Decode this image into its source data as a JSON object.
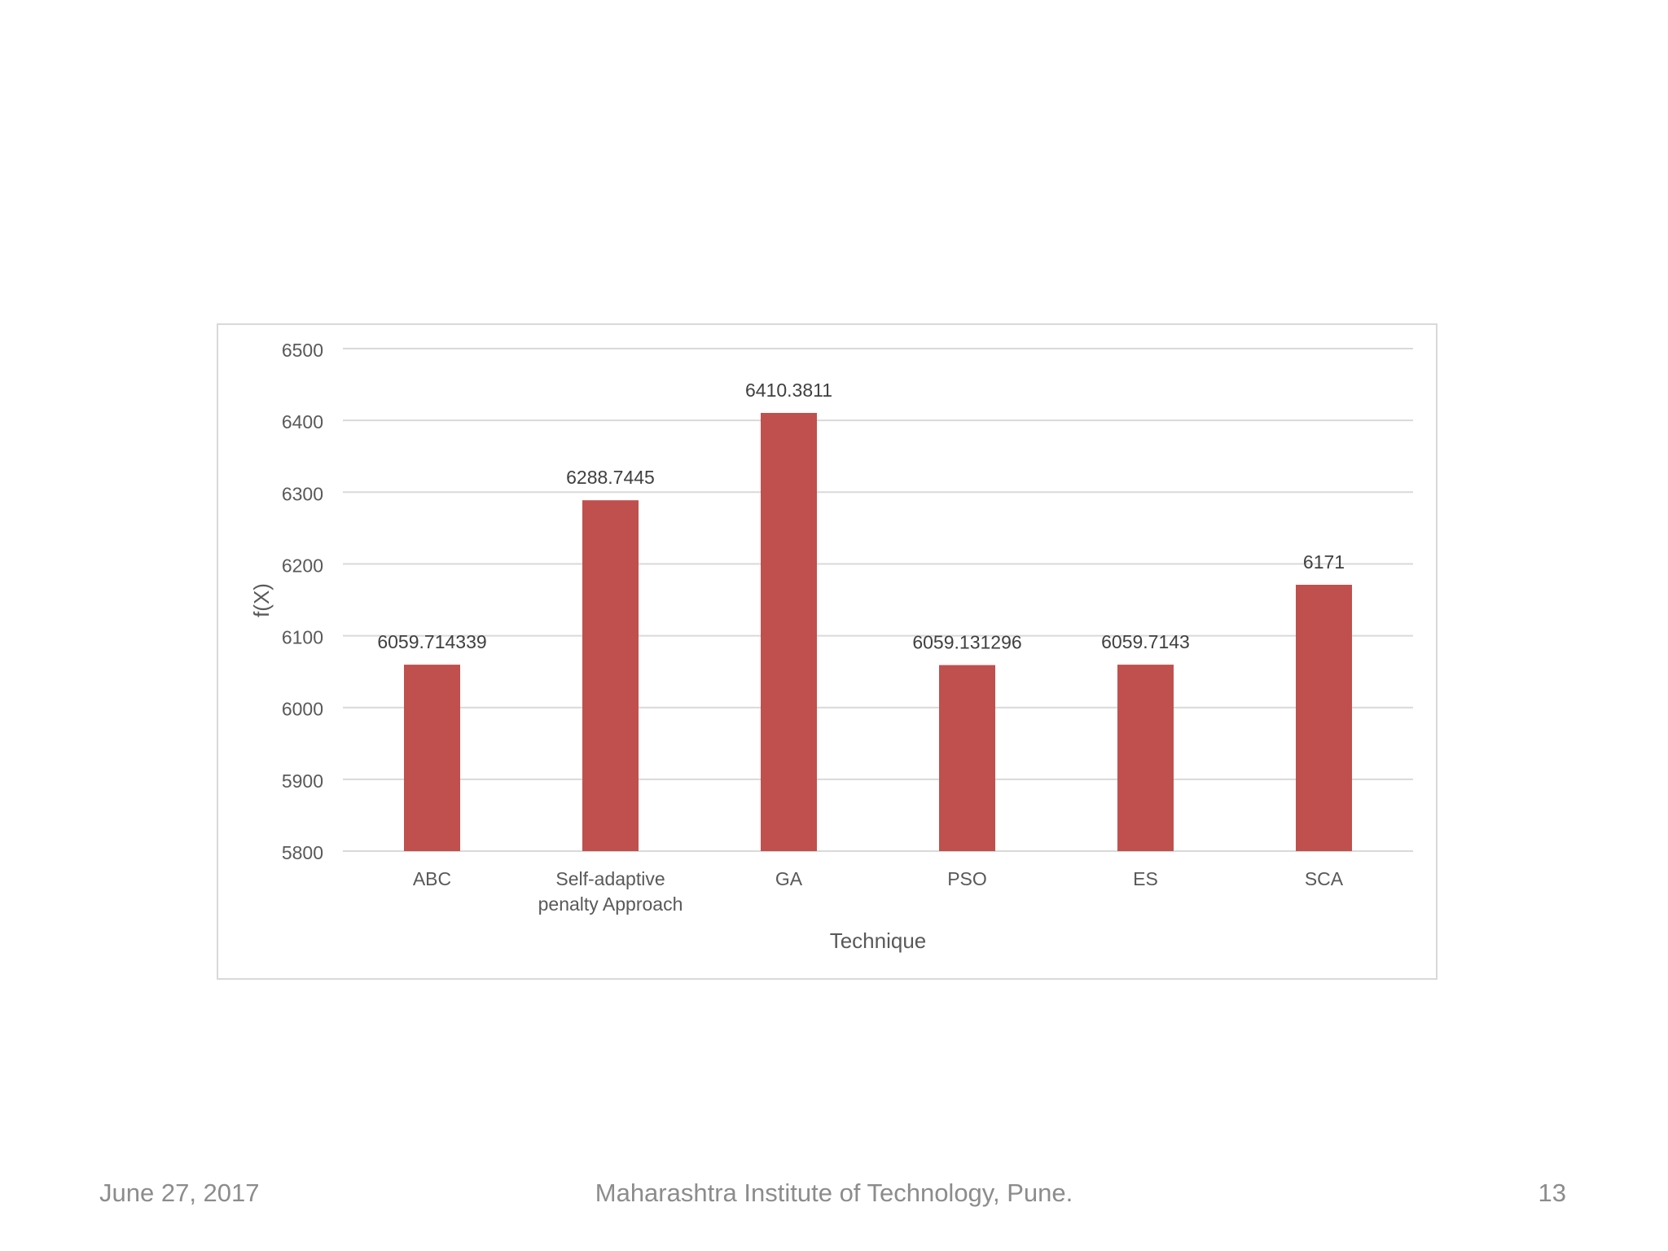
{
  "colors": {
    "bar": "#c0504d",
    "grid": "#d9d9d9",
    "axis_text": "#595959",
    "label_text": "#404040",
    "footer_text": "#8c8c8c"
  },
  "chart_data": {
    "type": "bar",
    "categories": [
      "ABC",
      "Self-adaptive penalty Approach",
      "GA",
      "PSO",
      "ES",
      "SCA"
    ],
    "category_lines": [
      [
        "ABC"
      ],
      [
        "Self-adaptive",
        "penalty Approach"
      ],
      [
        "GA"
      ],
      [
        "PSO"
      ],
      [
        "ES"
      ],
      [
        "SCA"
      ]
    ],
    "values": [
      6059.714339,
      6288.7445,
      6410.3811,
      6059.131296,
      6059.7143,
      6171
    ],
    "data_labels": [
      "6059.714339",
      "6288.7445",
      "6410.3811",
      "6059.131296",
      "6059.7143",
      "6171"
    ],
    "title": "",
    "xlabel": "Technique",
    "ylabel": "f(X)",
    "ylim": [
      5800,
      6500
    ],
    "yticks": [
      5800,
      5900,
      6000,
      6100,
      6200,
      6300,
      6400,
      6500
    ],
    "grid": true,
    "legend": "none"
  },
  "footer": {
    "date": "June 27, 2017",
    "institution": "Maharashtra Institute of Technology, Pune.",
    "page_number": "13"
  }
}
